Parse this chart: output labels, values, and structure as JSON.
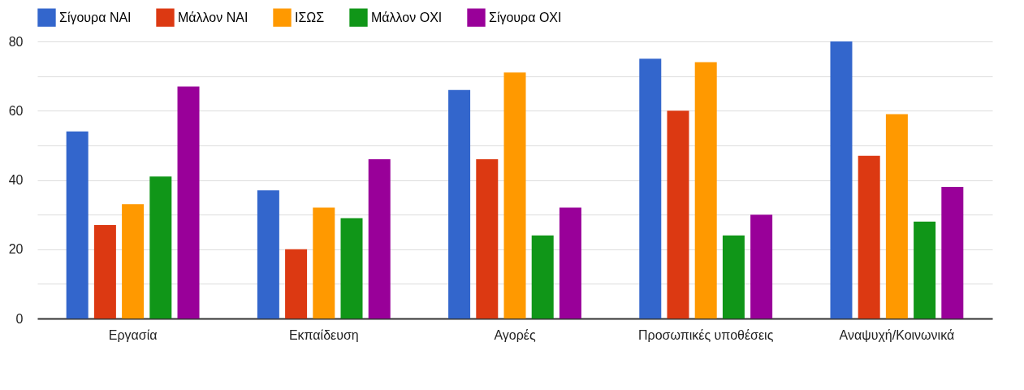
{
  "chart_data": {
    "type": "bar",
    "categories": [
      "Εργασία",
      "Εκπαίδευση",
      "Αγορές",
      "Προσωπικές υποθέσεις",
      "Αναψυχή/Κοινωνικά"
    ],
    "series": [
      {
        "name": "Σίγουρα ΝΑΙ",
        "color": "#3366cc",
        "values": [
          54,
          37,
          66,
          75,
          80
        ]
      },
      {
        "name": "Μάλλον ΝΑΙ",
        "color": "#dc3912",
        "values": [
          27,
          20,
          46,
          60,
          47
        ]
      },
      {
        "name": "ΙΣΩΣ",
        "color": "#ff9900",
        "values": [
          33,
          32,
          71,
          74,
          59
        ]
      },
      {
        "name": "Μάλλον ΟΧΙ",
        "color": "#109618",
        "values": [
          41,
          29,
          24,
          24,
          28
        ]
      },
      {
        "name": "Σίγουρα ΟΧΙ",
        "color": "#990099",
        "values": [
          67,
          46,
          32,
          30,
          38
        ]
      }
    ],
    "ylim": [
      0,
      80
    ],
    "yticks": [
      0,
      {
        "value": 10,
        "label": null
      },
      20,
      {
        "value": 30,
        "label": null
      },
      40,
      {
        "value": 50,
        "label": null
      },
      60,
      {
        "value": 70,
        "label": null
      },
      80
    ],
    "grid": "y",
    "legend": "top left"
  }
}
